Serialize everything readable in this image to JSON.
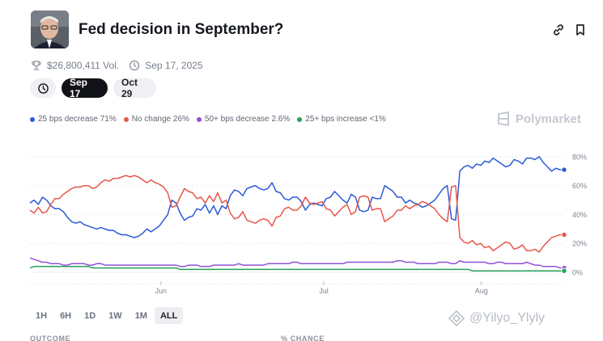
{
  "header": {
    "title": "Fed decision in September?"
  },
  "meta": {
    "volume": "$26,800,411 Vol.",
    "date": "Sep 17, 2025"
  },
  "date_tabs": [
    {
      "label": "Sep 17",
      "active": true
    },
    {
      "label": "Oct 29",
      "active": false
    }
  ],
  "legend": [
    {
      "label": "25 bps decrease 71%",
      "color": "#2b5bd7"
    },
    {
      "label": "No change 26%",
      "color": "#e8564b"
    },
    {
      "label": "50+ bps decrease 2.6%",
      "color": "#8f52d6"
    },
    {
      "label": "25+ bps increase <1%",
      "color": "#27a05a"
    }
  ],
  "brand": "Polymarket",
  "ranges": [
    {
      "label": "1H",
      "active": false
    },
    {
      "label": "6H",
      "active": false
    },
    {
      "label": "1D",
      "active": false
    },
    {
      "label": "1W",
      "active": false
    },
    {
      "label": "1M",
      "active": false
    },
    {
      "label": "ALL",
      "active": true
    }
  ],
  "watermark": "@Yilyo_Ylyly",
  "footer": {
    "outcome": "OUTCOME",
    "chance": "% CHANCE"
  },
  "chart_data": {
    "type": "line",
    "y_ticks": [
      "80%",
      "60%",
      "40%",
      "20%",
      "0%"
    ],
    "y_tick_values": [
      80,
      60,
      40,
      20,
      0
    ],
    "ylim": [
      0,
      85
    ],
    "x_ticks": [
      {
        "label": "Jun",
        "t": 0.245
      },
      {
        "label": "Jul",
        "t": 0.55
      },
      {
        "label": "Aug",
        "t": 0.845
      }
    ],
    "series": [
      {
        "name": "25 bps decrease",
        "color": "#2b5bd7",
        "values": [
          48,
          50,
          47,
          52,
          50,
          46,
          44,
          44,
          42,
          38,
          35,
          34,
          35,
          33,
          32,
          31,
          30,
          31,
          30,
          29,
          29,
          27,
          26,
          26,
          25,
          24,
          25,
          27,
          30,
          28,
          30,
          32,
          36,
          40,
          50,
          48,
          41,
          36,
          38,
          39,
          44,
          43,
          47,
          41,
          46,
          40,
          46,
          44,
          53,
          57,
          56,
          53,
          58,
          59,
          60,
          58,
          57,
          58,
          62,
          56,
          55,
          51,
          50,
          52,
          52,
          49,
          43,
          47,
          48,
          47,
          46,
          51,
          52,
          56,
          53,
          50,
          48,
          54,
          52,
          43,
          42,
          43,
          52,
          51,
          51,
          60,
          58,
          56,
          52,
          52,
          48,
          50,
          48,
          47,
          45,
          46,
          48,
          50,
          54,
          58,
          60,
          37,
          36,
          70,
          73,
          74,
          72,
          75,
          74,
          77,
          76,
          79,
          77,
          75,
          73,
          74,
          78,
          77,
          75,
          79,
          79,
          78,
          80,
          76,
          73,
          70,
          72,
          71,
          71
        ]
      },
      {
        "name": "No change",
        "color": "#e8564b",
        "values": [
          43,
          41,
          45,
          41,
          42,
          47,
          51,
          51,
          54,
          56,
          58,
          59,
          59,
          60,
          60,
          58,
          59,
          62,
          64,
          63,
          65,
          65,
          66,
          67,
          66,
          67,
          66,
          64,
          62,
          64,
          62,
          61,
          59,
          55,
          45,
          46,
          52,
          58,
          56,
          55,
          51,
          52,
          48,
          53,
          49,
          55,
          48,
          50,
          41,
          37,
          38,
          42,
          36,
          35,
          34,
          36,
          37,
          36,
          32,
          38,
          39,
          44,
          45,
          43,
          43,
          46,
          52,
          48,
          47,
          48,
          49,
          44,
          43,
          39,
          42,
          45,
          47,
          40,
          42,
          52,
          53,
          52,
          43,
          44,
          44,
          35,
          37,
          39,
          43,
          43,
          46,
          44,
          46,
          47,
          49,
          48,
          46,
          44,
          40,
          37,
          35,
          59,
          60,
          24,
          21,
          20,
          22,
          19,
          20,
          17,
          18,
          15,
          17,
          19,
          21,
          20,
          16,
          17,
          19,
          15,
          15,
          16,
          14,
          18,
          21,
          24,
          25,
          26,
          26
        ]
      },
      {
        "name": "50+ bps decrease",
        "color": "#8f52d6",
        "values": [
          10,
          9,
          8,
          7,
          7,
          6,
          6,
          6,
          5,
          5,
          6,
          6,
          6,
          6,
          5,
          5,
          6,
          6,
          5,
          5,
          5,
          5,
          5,
          5,
          5,
          5,
          5,
          5,
          5,
          5,
          5,
          5,
          5,
          5,
          5,
          5,
          4,
          4,
          5,
          5,
          5,
          4,
          4,
          4,
          5,
          5,
          5,
          5,
          5,
          5,
          6,
          5,
          5,
          5,
          5,
          5,
          5,
          6,
          6,
          6,
          6,
          6,
          6,
          7,
          7,
          6,
          6,
          6,
          6,
          6,
          6,
          6,
          6,
          6,
          6,
          6,
          7,
          7,
          7,
          7,
          7,
          7,
          7,
          7,
          7,
          7,
          7,
          7,
          8,
          8,
          7,
          7,
          7,
          6,
          6,
          6,
          6,
          6,
          7,
          7,
          7,
          6,
          6,
          8,
          7,
          7,
          7,
          7,
          7,
          7,
          6,
          6,
          7,
          7,
          6,
          6,
          6,
          6,
          6,
          7,
          6,
          5,
          5,
          4,
          4,
          4,
          4,
          3,
          3
        ]
      },
      {
        "name": "25+ bps increase",
        "color": "#27a05a",
        "values": [
          3,
          4,
          4,
          4,
          4,
          4,
          4,
          4,
          4,
          4,
          4,
          4,
          4,
          4,
          4,
          3,
          3,
          3,
          3,
          3,
          3,
          3,
          3,
          3,
          3,
          3,
          3,
          3,
          3,
          3,
          3,
          3,
          3,
          3,
          3,
          3,
          2,
          2,
          2,
          2,
          2,
          2,
          2,
          2,
          2,
          2,
          2,
          2,
          2,
          2,
          2,
          2,
          2,
          2,
          2,
          2,
          2,
          2,
          2,
          2,
          2,
          2,
          2,
          2,
          2,
          2,
          2,
          2,
          2,
          2,
          2,
          2,
          2,
          2,
          2,
          2,
          2,
          2,
          2,
          2,
          2,
          2,
          2,
          2,
          2,
          2,
          2,
          2,
          2,
          2,
          2,
          2,
          2,
          2,
          2,
          2,
          2,
          2,
          2,
          2,
          2,
          2,
          2,
          2,
          2,
          2,
          1,
          1,
          1,
          1,
          1,
          1,
          1,
          1,
          1,
          1,
          1,
          1,
          1,
          1,
          1,
          1,
          1,
          1,
          1,
          1,
          1,
          1,
          1
        ]
      }
    ]
  }
}
